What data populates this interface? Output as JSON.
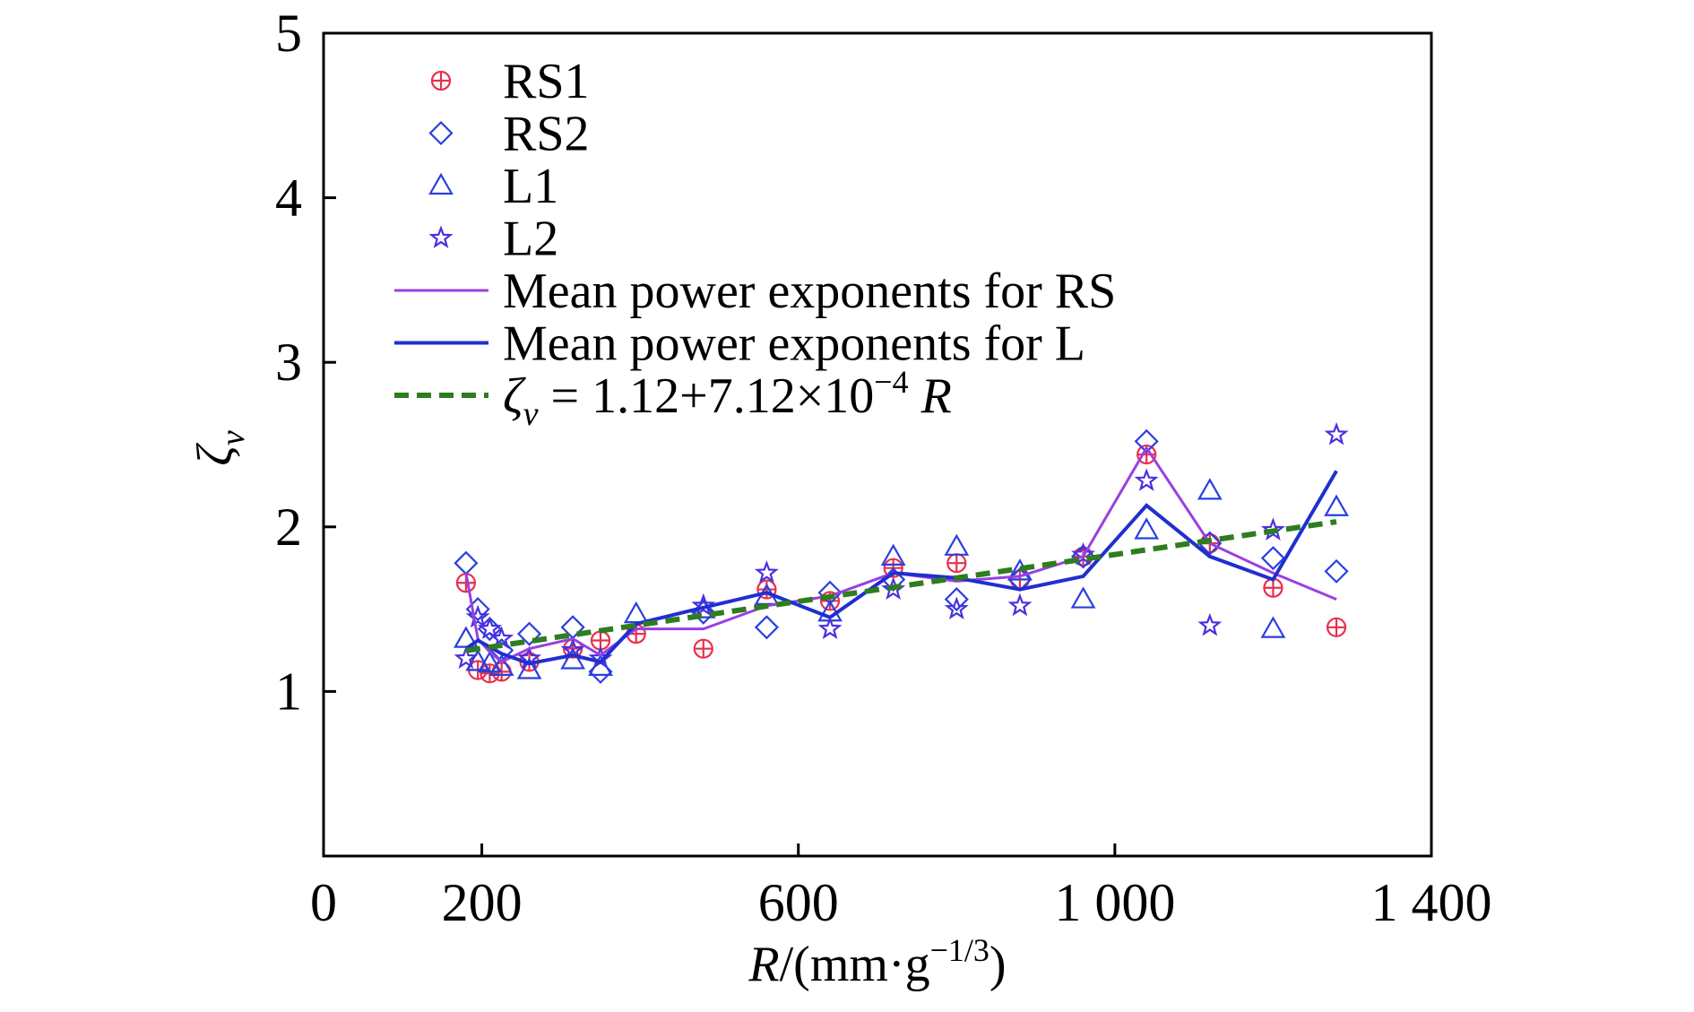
{
  "chart_data": {
    "type": "scatter",
    "xlabel": {
      "var": "R",
      "unit_open": "/(mm·g",
      "unit_exp": "−1/3",
      "unit_close": ")"
    },
    "ylabel": "ζv",
    "xlim": [
      0,
      1400
    ],
    "ylim": [
      0,
      5
    ],
    "x_ticks": [
      0,
      200,
      600,
      1000,
      1400
    ],
    "x_tick_labels": [
      "0",
      "200",
      "600",
      "1 000",
      "1 400"
    ],
    "y_ticks": [
      1,
      2,
      3,
      4,
      5
    ],
    "y_tick_labels": [
      "1",
      "2",
      "3",
      "4",
      "5"
    ],
    "legend_position": "top-left",
    "series": [
      {
        "name": "RS1",
        "kind": "marker",
        "marker": "circle-plus",
        "color": "#e8304c",
        "points": [
          [
            180,
            1.66
          ],
          [
            195,
            1.13
          ],
          [
            210,
            1.11
          ],
          [
            225,
            1.12
          ],
          [
            260,
            1.18
          ],
          [
            315,
            1.26
          ],
          [
            350,
            1.31
          ],
          [
            395,
            1.35
          ],
          [
            480,
            1.26
          ],
          [
            560,
            1.62
          ],
          [
            640,
            1.55
          ],
          [
            720,
            1.75
          ],
          [
            800,
            1.78
          ],
          [
            880,
            1.68
          ],
          [
            960,
            1.82
          ],
          [
            1040,
            2.44
          ],
          [
            1120,
            1.9
          ],
          [
            1200,
            1.63
          ],
          [
            1280,
            1.39
          ]
        ]
      },
      {
        "name": "RS2",
        "kind": "marker",
        "marker": "diamond",
        "color": "#2a3fe0",
        "points": [
          [
            180,
            1.78
          ],
          [
            195,
            1.5
          ],
          [
            210,
            1.38
          ],
          [
            225,
            1.25
          ],
          [
            260,
            1.35
          ],
          [
            315,
            1.39
          ],
          [
            350,
            1.12
          ],
          [
            480,
            1.48
          ],
          [
            560,
            1.39
          ],
          [
            640,
            1.6
          ],
          [
            720,
            1.68
          ],
          [
            800,
            1.56
          ],
          [
            880,
            1.68
          ],
          [
            960,
            1.82
          ],
          [
            1040,
            2.52
          ],
          [
            1120,
            1.9
          ],
          [
            1200,
            1.81
          ],
          [
            1280,
            1.73
          ]
        ]
      },
      {
        "name": "L1",
        "kind": "marker",
        "marker": "triangle",
        "color": "#2a3fe0",
        "points": [
          [
            180,
            1.32
          ],
          [
            195,
            1.18
          ],
          [
            210,
            1.17
          ],
          [
            225,
            1.15
          ],
          [
            260,
            1.13
          ],
          [
            315,
            1.19
          ],
          [
            350,
            1.15
          ],
          [
            395,
            1.47
          ],
          [
            480,
            1.5
          ],
          [
            560,
            1.58
          ],
          [
            640,
            1.48
          ],
          [
            720,
            1.82
          ],
          [
            800,
            1.88
          ],
          [
            880,
            1.73
          ],
          [
            960,
            1.56
          ],
          [
            1040,
            1.98
          ],
          [
            1120,
            2.22
          ],
          [
            1200,
            1.38
          ],
          [
            1280,
            2.12
          ]
        ]
      },
      {
        "name": "L2",
        "kind": "marker",
        "marker": "star",
        "color": "#4a30e0",
        "points": [
          [
            180,
            1.2
          ],
          [
            195,
            1.45
          ],
          [
            210,
            1.38
          ],
          [
            225,
            1.32
          ],
          [
            260,
            1.2
          ],
          [
            315,
            1.25
          ],
          [
            350,
            1.2
          ],
          [
            480,
            1.52
          ],
          [
            560,
            1.72
          ],
          [
            640,
            1.38
          ],
          [
            720,
            1.62
          ],
          [
            800,
            1.5
          ],
          [
            880,
            1.52
          ],
          [
            960,
            1.83
          ],
          [
            1040,
            2.28
          ],
          [
            1120,
            1.4
          ],
          [
            1200,
            1.98
          ],
          [
            1280,
            2.56
          ]
        ]
      },
      {
        "name": "Mean power exponents for RS",
        "kind": "line",
        "color": "#9b3fe0",
        "width": 3,
        "points": [
          [
            180,
            1.72
          ],
          [
            195,
            1.32
          ],
          [
            210,
            1.24
          ],
          [
            225,
            1.18
          ],
          [
            260,
            1.26
          ],
          [
            315,
            1.32
          ],
          [
            350,
            1.22
          ],
          [
            395,
            1.38
          ],
          [
            480,
            1.38
          ],
          [
            560,
            1.52
          ],
          [
            640,
            1.58
          ],
          [
            720,
            1.72
          ],
          [
            800,
            1.67
          ],
          [
            880,
            1.7
          ],
          [
            960,
            1.82
          ],
          [
            1040,
            2.48
          ],
          [
            1120,
            1.9
          ],
          [
            1200,
            1.72
          ],
          [
            1280,
            1.56
          ]
        ]
      },
      {
        "name": "Mean power exponents for L",
        "kind": "line",
        "color": "#1f2fd0",
        "width": 4,
        "points": [
          [
            180,
            1.26
          ],
          [
            195,
            1.31
          ],
          [
            210,
            1.27
          ],
          [
            225,
            1.23
          ],
          [
            260,
            1.17
          ],
          [
            315,
            1.22
          ],
          [
            350,
            1.18
          ],
          [
            395,
            1.41
          ],
          [
            480,
            1.51
          ],
          [
            560,
            1.6
          ],
          [
            640,
            1.45
          ],
          [
            720,
            1.72
          ],
          [
            800,
            1.69
          ],
          [
            880,
            1.62
          ],
          [
            960,
            1.7
          ],
          [
            1040,
            2.13
          ],
          [
            1120,
            1.82
          ],
          [
            1200,
            1.68
          ],
          [
            1280,
            2.34
          ]
        ]
      },
      {
        "name_parts": {
          "var": "ζ",
          "sub": "v",
          "mid": " = 1.12+7.12×10",
          "exp": "−4",
          "tail": " R"
        },
        "kind": "dashed",
        "color": "#2e7d1e",
        "width": 6,
        "intercept": 1.12,
        "slope": 0.000712,
        "x_range": [
          180,
          1280
        ]
      }
    ]
  }
}
